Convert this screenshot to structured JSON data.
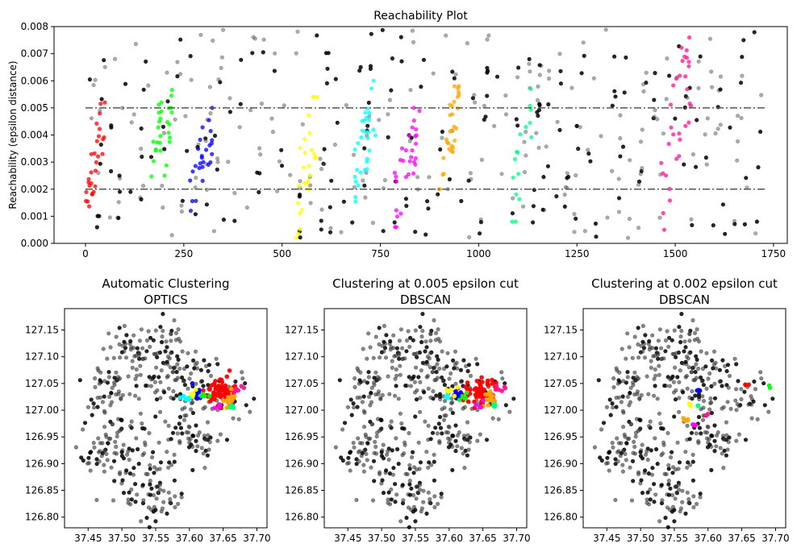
{
  "chart_data": [
    {
      "type": "scatter",
      "title": "Reachability Plot",
      "xlabel": "",
      "ylabel": "Reachability (epsilon distance)",
      "xlim": [
        -80,
        1785
      ],
      "ylim": [
        0,
        0.008
      ],
      "xticks": [
        "0",
        "250",
        "500",
        "750",
        "1000",
        "1250",
        "1500",
        "1750"
      ],
      "xtick_values": [
        0,
        250,
        500,
        750,
        1000,
        1250,
        1500,
        1750
      ],
      "yticks": [
        "0.000",
        "0.001",
        "0.002",
        "0.003",
        "0.004",
        "0.005",
        "0.006",
        "0.007",
        "0.008"
      ],
      "ytick_values": [
        0,
        0.001,
        0.002,
        0.003,
        0.004,
        0.005,
        0.006,
        0.007,
        0.008
      ],
      "hlines": [
        {
          "y": 0.005,
          "style": "dash-dot",
          "color": "#555555"
        },
        {
          "y": 0.002,
          "style": "dash-dot",
          "color": "#555555"
        }
      ],
      "noise_color": "#000000",
      "clusters": [
        {
          "color": "#ff0000",
          "x_range": [
            0,
            50
          ],
          "y_range": [
            0.0012,
            0.0052
          ],
          "count": 28
        },
        {
          "color": "#00ff00",
          "x_range": [
            165,
            195
          ],
          "y_range": [
            0.0016,
            0.0052
          ],
          "count": 16
        },
        {
          "color": "#00ff00",
          "x_range": [
            200,
            225
          ],
          "y_range": [
            0.0025,
            0.0058
          ],
          "count": 12
        },
        {
          "color": "#0000ff",
          "x_range": [
            265,
            330
          ],
          "y_range": [
            0.0012,
            0.005
          ],
          "count": 26
        },
        {
          "color": "#ffff00",
          "x_range": [
            530,
            590
          ],
          "y_range": [
            0.0002,
            0.0054
          ],
          "count": 26
        },
        {
          "color": "#00ffff",
          "x_range": [
            680,
            740
          ],
          "y_range": [
            0.0013,
            0.006
          ],
          "count": 30
        },
        {
          "color": "#ff00ff",
          "x_range": [
            785,
            850
          ],
          "y_range": [
            0.0006,
            0.005
          ],
          "count": 30
        },
        {
          "color": "#ffa500",
          "x_range": [
            900,
            950
          ],
          "y_range": [
            0.002,
            0.0058
          ],
          "count": 30
        },
        {
          "color": "#00ff80",
          "x_range": [
            1085,
            1135
          ],
          "y_range": [
            0.0008,
            0.0057
          ],
          "count": 16
        },
        {
          "color": "#ff1493",
          "x_range": [
            1460,
            1540
          ],
          "y_range": [
            0.0005,
            0.0076
          ],
          "count": 32
        }
      ],
      "noise_count": 430
    },
    {
      "type": "scatter",
      "title": "Automatic Clustering\nOPTICS",
      "title_lines": [
        "Automatic Clustering",
        "OPTICS"
      ],
      "xlim": [
        37.415,
        37.715
      ],
      "ylim": [
        126.78,
        127.19
      ],
      "xticks": [
        "37.45",
        "37.50",
        "37.55",
        "37.60",
        "37.65",
        "37.70"
      ],
      "xtick_values": [
        37.45,
        37.5,
        37.55,
        37.6,
        37.65,
        37.7
      ],
      "yticks": [
        "127.15",
        "127.10",
        "127.05",
        "127.00",
        "126.95",
        "126.90",
        "126.85",
        "126.80"
      ],
      "ytick_values": [
        127.15,
        127.1,
        127.05,
        127.0,
        126.95,
        126.9,
        126.85,
        126.8
      ],
      "clusters": [
        {
          "color": "#ff0000",
          "cx": 37.645,
          "cy": 127.035,
          "sx": 0.012,
          "sy": 0.012,
          "count": 60
        },
        {
          "color": "#0000ff",
          "cx": 37.612,
          "cy": 127.03,
          "sx": 0.006,
          "sy": 0.006,
          "count": 10
        },
        {
          "color": "#00ffff",
          "cx": 37.595,
          "cy": 127.025,
          "sx": 0.004,
          "sy": 0.004,
          "count": 6
        },
        {
          "color": "#ffff00",
          "cx": 37.605,
          "cy": 127.035,
          "sx": 0.004,
          "sy": 0.004,
          "count": 6
        },
        {
          "color": "#00ff00",
          "cx": 37.625,
          "cy": 127.025,
          "sx": 0.004,
          "sy": 0.004,
          "count": 5
        },
        {
          "color": "#ffa500",
          "cx": 37.66,
          "cy": 127.02,
          "sx": 0.004,
          "sy": 0.008,
          "count": 14
        },
        {
          "color": "#ff00ff",
          "cx": 37.645,
          "cy": 127.008,
          "sx": 0.004,
          "sy": 0.003,
          "count": 4
        },
        {
          "color": "#00ff80",
          "cx": 37.665,
          "cy": 127.008,
          "sx": 0.003,
          "sy": 0.003,
          "count": 4
        },
        {
          "color": "#ff1493",
          "cx": 37.675,
          "cy": 127.04,
          "sx": 0.005,
          "sy": 0.003,
          "count": 6
        }
      ]
    },
    {
      "type": "scatter",
      "title": "Clustering at 0.005 epsilon cut\nDBSCAN",
      "title_lines": [
        "Clustering at 0.005 epsilon cut",
        "DBSCAN"
      ],
      "xlim": [
        37.415,
        37.715
      ],
      "ylim": [
        126.78,
        127.19
      ],
      "xticks": [
        "37.45",
        "37.50",
        "37.55",
        "37.60",
        "37.65",
        "37.70"
      ],
      "xtick_values": [
        37.45,
        37.5,
        37.55,
        37.6,
        37.65,
        37.7
      ],
      "yticks": [
        "127.15",
        "127.10",
        "127.05",
        "127.00",
        "126.95",
        "126.90",
        "126.85",
        "126.80"
      ],
      "ytick_values": [
        127.15,
        127.1,
        127.05,
        127.0,
        126.95,
        126.9,
        126.85,
        126.8
      ],
      "clusters": [
        {
          "color": "#ff0000",
          "cx": 37.645,
          "cy": 127.035,
          "sx": 0.012,
          "sy": 0.012,
          "count": 60
        },
        {
          "color": "#0000ff",
          "cx": 37.612,
          "cy": 127.03,
          "sx": 0.006,
          "sy": 0.006,
          "count": 10
        },
        {
          "color": "#00ffff",
          "cx": 37.595,
          "cy": 127.025,
          "sx": 0.004,
          "sy": 0.004,
          "count": 6
        },
        {
          "color": "#ffff00",
          "cx": 37.605,
          "cy": 127.035,
          "sx": 0.004,
          "sy": 0.004,
          "count": 6
        },
        {
          "color": "#00ff00",
          "cx": 37.625,
          "cy": 127.025,
          "sx": 0.004,
          "sy": 0.004,
          "count": 5
        },
        {
          "color": "#ffa500",
          "cx": 37.66,
          "cy": 127.02,
          "sx": 0.004,
          "sy": 0.008,
          "count": 14
        },
        {
          "color": "#ff00ff",
          "cx": 37.645,
          "cy": 127.008,
          "sx": 0.004,
          "sy": 0.003,
          "count": 4
        },
        {
          "color": "#00ff80",
          "cx": 37.665,
          "cy": 127.008,
          "sx": 0.003,
          "sy": 0.003,
          "count": 4
        },
        {
          "color": "#ff1493",
          "cx": 37.675,
          "cy": 127.04,
          "sx": 0.005,
          "sy": 0.003,
          "count": 6
        }
      ]
    },
    {
      "type": "scatter",
      "title": "Clustering at 0.002 epsilon cut\nDBSCAN",
      "title_lines": [
        "Clustering at 0.002 epsilon cut",
        "DBSCAN"
      ],
      "xlim": [
        37.415,
        37.715
      ],
      "ylim": [
        126.78,
        127.19
      ],
      "xticks": [
        "37.45",
        "37.50",
        "37.55",
        "37.60",
        "37.65",
        "37.70"
      ],
      "xtick_values": [
        37.45,
        37.5,
        37.55,
        37.6,
        37.65,
        37.7
      ],
      "yticks": [
        "127.15",
        "127.10",
        "127.05",
        "127.00",
        "126.95",
        "126.90",
        "126.85",
        "126.80"
      ],
      "ytick_values": [
        127.15,
        127.1,
        127.05,
        127.0,
        126.95,
        126.9,
        126.85,
        126.8
      ],
      "clusters": [
        {
          "color": "#0000ff",
          "cx": 37.585,
          "cy": 127.038,
          "sx": 0.002,
          "sy": 0.002,
          "count": 3
        },
        {
          "color": "#ff0000",
          "cx": 37.657,
          "cy": 127.048,
          "sx": 0.002,
          "sy": 0.001,
          "count": 3
        },
        {
          "color": "#00ff00",
          "cx": 37.692,
          "cy": 127.045,
          "sx": 0.001,
          "sy": 0.001,
          "count": 2
        },
        {
          "color": "#ffff00",
          "cx": 37.572,
          "cy": 127.01,
          "sx": 0.002,
          "sy": 0.002,
          "count": 3
        },
        {
          "color": "#00ff80",
          "cx": 37.585,
          "cy": 127.01,
          "sx": 0.002,
          "sy": 0.002,
          "count": 3
        },
        {
          "color": "#ffa500",
          "cx": 37.568,
          "cy": 126.982,
          "sx": 0.003,
          "sy": 0.002,
          "count": 4
        },
        {
          "color": "#ff1493",
          "cx": 37.598,
          "cy": 126.99,
          "sx": 0.002,
          "sy": 0.002,
          "count": 3
        },
        {
          "color": "#ff00ff",
          "cx": 37.582,
          "cy": 126.972,
          "sx": 0.002,
          "sy": 0.001,
          "count": 3
        }
      ]
    }
  ]
}
